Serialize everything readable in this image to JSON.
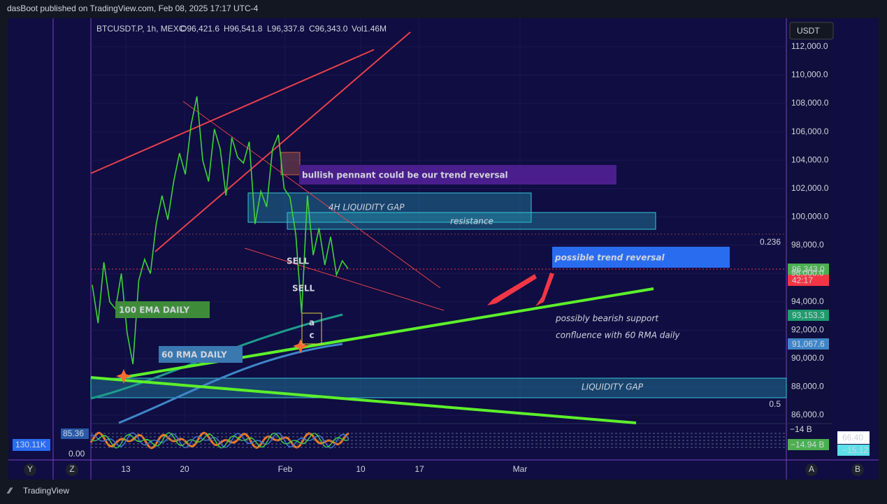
{
  "header": {
    "publisher": "dasBoot published on TradingView.com, Feb 08, 2025 17:17 UTC-4"
  },
  "legend": {
    "symbol": "BTCUSDT.P, 1h, MEXC",
    "open": "O96,421.6",
    "high": "H96,541.8",
    "low": "L96,337.8",
    "close": "C96,343.0",
    "volume": "Vol1.46M"
  },
  "price_axis": {
    "currency": "USDT",
    "ticks": [
      {
        "value": 112000,
        "label": "112,000.0"
      },
      {
        "value": 110000,
        "label": "110,000.0"
      },
      {
        "value": 108000,
        "label": "108,000.0"
      },
      {
        "value": 106000,
        "label": "106,000.0"
      },
      {
        "value": 104000,
        "label": "104,000.0"
      },
      {
        "value": 102000,
        "label": "102,000.0"
      },
      {
        "value": 100000,
        "label": "100,000.0"
      },
      {
        "value": 98000,
        "label": "98,000.0"
      },
      {
        "value": 96000,
        "label": "96,000.0"
      },
      {
        "value": 94000,
        "label": "94,000.0"
      },
      {
        "value": 92000,
        "label": "92,000.0"
      },
      {
        "value": 90000,
        "label": "90,000.0"
      },
      {
        "value": 88000,
        "label": "88,000.0"
      },
      {
        "value": 86000,
        "label": "86,000.0"
      }
    ],
    "badges": {
      "last": "96,343.0",
      "countdown": "42:17",
      "ema": "93,153.3",
      "rma": "91,067.6"
    },
    "fib": {
      "upper": "0.236",
      "lower": "0.5"
    }
  },
  "time_axis": {
    "labels": [
      "13",
      "20",
      "Feb",
      "10",
      "17",
      "Mar"
    ]
  },
  "price_series": {
    "values": [
      95200,
      92500,
      96800,
      94000,
      93500,
      96000,
      91800,
      89600,
      95500,
      97000,
      96000,
      99500,
      101500,
      99800,
      102500,
      104500,
      103000,
      106500,
      108500,
      104000,
      102500,
      106200,
      104800,
      101500,
      105600,
      104200,
      103800,
      105300,
      99500,
      101800,
      100700,
      104800,
      105800,
      102000,
      101400,
      98800,
      93200,
      101500,
      97300,
      99200,
      96600,
      98600,
      95900,
      96900,
      96343
    ]
  },
  "annotations": {
    "pennant": "bullish pennant could be our trend reversal",
    "gap4h": "4H LIQUIDITY GAP",
    "resistance": "resistance",
    "reversal": "possible trend reversal",
    "support1": "possibly bearish support",
    "support2": "confluence with 60 RMA daily",
    "ema": "100 EMA DAILY",
    "rma": "60 RMA DAILY",
    "gap": "LIQUIDITY GAP",
    "sell1": "SELL",
    "sell2": "SELL",
    "a": "a",
    "c": "c"
  },
  "indicator": {
    "left_top": "85.36",
    "left_bottom": "0.00",
    "right_top": "−14 B",
    "right_mid": "−14.94 B",
    "value1": "66.40",
    "value2": "−15.12",
    "volume": "130.11K"
  },
  "sidebar": {
    "y": "Y",
    "z": "Z",
    "a": "A",
    "b": "B"
  },
  "footer": {
    "brand": "TradingView"
  }
}
